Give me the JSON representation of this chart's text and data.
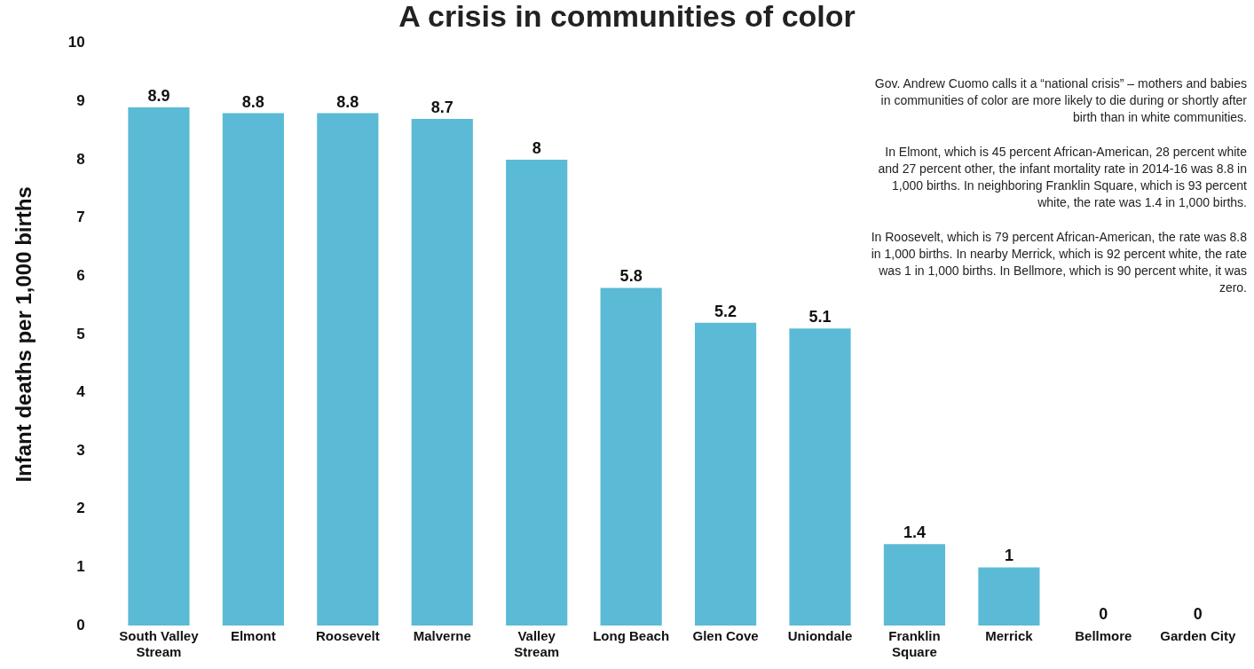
{
  "chart_data": {
    "type": "bar",
    "title": "A crisis in communities of color",
    "ylabel": "Infant deaths per 1,000 births",
    "categories": [
      "South Valley Stream",
      "Elmont",
      "Roosevelt",
      "Malverne",
      "Valley Stream",
      "Long Beach",
      "Glen Cove",
      "Uniondale",
      "Franklin Square",
      "Merrick",
      "Bellmore",
      "Garden City"
    ],
    "values": [
      8.9,
      8.8,
      8.8,
      8.7,
      8,
      5.8,
      5.2,
      5.1,
      1.4,
      1,
      0,
      0
    ],
    "color": "#5bbad5",
    "ylim": [
      0,
      10
    ],
    "yticks": [
      0,
      1,
      2,
      3,
      4,
      5,
      6,
      7,
      8,
      9,
      10
    ],
    "grid": false,
    "legend": false,
    "data_labels": true,
    "annotations": [
      "Gov. Andrew Cuomo calls it a “national crisis” – mothers and babies in communities of color are more likely to die during or shortly after birth than in white communities.",
      "In Elmont, which is 45 percent African-American, 28 percent white and 27 percent other, the infant mortality rate in 2014-16 was 8.8 in 1,000 births. In neighboring Franklin Square, which is 93 percent white, the rate was 1.4 in 1,000 births.",
      "In Roosevelt, which is 79 percent African-American, the rate was 8.8 in 1,000 births. In nearby Merrick, which is 92 percent white, the rate was 1 in 1,000 births. In Bellmore, which is 90 percent white, it was zero."
    ]
  }
}
